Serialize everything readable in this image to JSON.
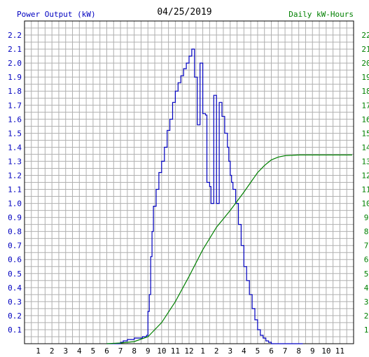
{
  "chart_data": {
    "type": "line",
    "title": "04/25/2019",
    "y_left_label": "Power Output (kW)",
    "y_right_label": "Daily kW-Hours",
    "x_ticks": [
      "1",
      "2",
      "3",
      "4",
      "5",
      "6",
      "7",
      "8",
      "9",
      "10",
      "11",
      "12",
      "1",
      "2",
      "3",
      "4",
      "5",
      "6",
      "7",
      "8",
      "9",
      "10",
      "11"
    ],
    "x_range_hours": [
      0,
      24
    ],
    "y_left_range": [
      0,
      2.3
    ],
    "y_left_ticks": [
      "0.1",
      "0.2",
      "0.3",
      "0.4",
      "0.5",
      "0.6",
      "0.7",
      "0.8",
      "0.9",
      "1.0",
      "1.1",
      "1.2",
      "1.3",
      "1.4",
      "1.5",
      "1.6",
      "1.7",
      "1.8",
      "1.9",
      "2.0",
      "2.1",
      "2.2"
    ],
    "y_right_range": [
      0,
      23
    ],
    "y_right_ticks": [
      "1",
      "2",
      "3",
      "4",
      "5",
      "6",
      "7",
      "8",
      "9",
      "10",
      "11",
      "12",
      "13",
      "14",
      "15",
      "16",
      "17",
      "18",
      "19",
      "20",
      "21",
      "22"
    ],
    "grid": true,
    "series": [
      {
        "name": "Power Output (kW)",
        "axis": "left",
        "color": "#0000c0",
        "x": [
          6.0,
          6.9,
          7.0,
          7.2,
          7.5,
          8.0,
          8.6,
          8.9,
          9.0,
          9.1,
          9.2,
          9.3,
          9.4,
          9.6,
          9.8,
          10.0,
          10.2,
          10.4,
          10.6,
          10.8,
          11.0,
          11.2,
          11.4,
          11.6,
          11.8,
          12.0,
          12.2,
          12.4,
          12.6,
          12.8,
          13.0,
          13.2,
          13.3,
          13.5,
          13.6,
          13.8,
          14.0,
          14.2,
          14.4,
          14.6,
          14.8,
          14.9,
          15.0,
          15.1,
          15.2,
          15.4,
          15.6,
          15.8,
          16.0,
          16.2,
          16.4,
          16.6,
          16.8,
          17.0,
          17.2,
          17.4,
          17.6,
          17.8,
          18.0,
          18.2,
          18.4,
          18.6,
          18.8,
          19.0,
          19.2,
          19.6,
          20.0,
          20.3
        ],
        "y": [
          0.0,
          0.0,
          0.01,
          0.02,
          0.03,
          0.04,
          0.05,
          0.06,
          0.23,
          0.35,
          0.62,
          0.8,
          0.98,
          1.1,
          1.22,
          1.3,
          1.4,
          1.52,
          1.6,
          1.72,
          1.8,
          1.86,
          1.91,
          1.96,
          2.0,
          2.05,
          2.1,
          1.9,
          1.56,
          2.0,
          1.64,
          1.63,
          1.15,
          1.12,
          1.0,
          1.77,
          1.0,
          1.72,
          1.62,
          1.5,
          1.4,
          1.3,
          1.2,
          1.15,
          1.1,
          1.0,
          0.85,
          0.7,
          0.55,
          0.45,
          0.35,
          0.25,
          0.17,
          0.1,
          0.06,
          0.04,
          0.02,
          0.01,
          0.0,
          0.0,
          0.0,
          0.0,
          0.0,
          0.0,
          0.0,
          0.0,
          0.0,
          0.0
        ]
      },
      {
        "name": "Daily kW-Hours",
        "axis": "right",
        "color": "#008000",
        "x": [
          6.0,
          7.0,
          8.0,
          9.0,
          10.0,
          11.0,
          12.0,
          13.0,
          14.0,
          15.0,
          16.0,
          16.5,
          17.0,
          17.5,
          18.0,
          18.5,
          19.0,
          20.0,
          21.0,
          22.0,
          23.0,
          23.9
        ],
        "y": [
          0.0,
          0.05,
          0.15,
          0.5,
          1.5,
          3.0,
          4.8,
          6.7,
          8.3,
          9.5,
          10.8,
          11.5,
          12.2,
          12.7,
          13.1,
          13.3,
          13.4,
          13.45,
          13.45,
          13.45,
          13.45,
          13.45
        ]
      }
    ]
  }
}
